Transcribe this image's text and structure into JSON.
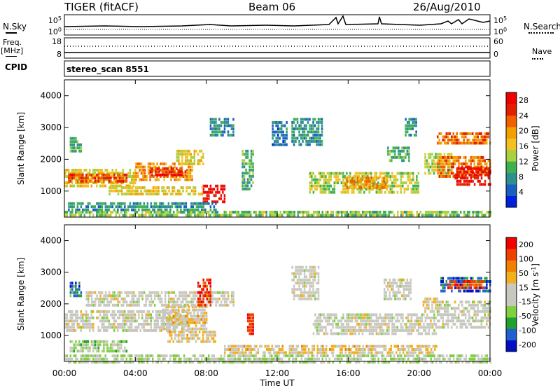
{
  "header": {
    "title": "TIGER (fitACF)",
    "beam": "Beam 06",
    "date": "26/Aug/2010"
  },
  "top_panels": {
    "nsky_label": "N.Sky",
    "nsky_ticks": [
      "10^5",
      "10^0"
    ],
    "nsearch_label": "N.Search",
    "nsearch_ticks": [
      "10^5",
      "10^0"
    ],
    "freq_label": "Freq.",
    "freq_unit": "[MHz]",
    "freq_ticks": [
      "18",
      "8"
    ],
    "nave_label": "Nave",
    "nave_ticks": [
      "60",
      "0"
    ],
    "cpid_label": "CPID",
    "cpid_value": "stereo_scan 8551"
  },
  "colors": {
    "power_scale": [
      "#0020e0",
      "#1860c0",
      "#2f8f8f",
      "#3fb050",
      "#a8d040",
      "#f2c020",
      "#f0a000",
      "#f06000",
      "#e02000",
      "#f00000"
    ],
    "velocity_scale": [
      "#0010c0",
      "#2060d0",
      "#20a030",
      "#80d040",
      "#c8c8c0",
      "#c8c8c0",
      "#f0b020",
      "#f08000",
      "#f04000",
      "#f00000"
    ]
  },
  "chart_data": [
    {
      "type": "heatmap",
      "title": "Power",
      "xlabel": "Time UT",
      "ylabel": "Slant Range [km]",
      "x_ticks": [
        "00:00",
        "04:00",
        "08:00",
        "12:00",
        "16:00",
        "20:00",
        "00:00"
      ],
      "x_range_hours": [
        0,
        24
      ],
      "y_ticks": [
        1000,
        2000,
        3000,
        4000
      ],
      "y_range": [
        180,
        4500
      ],
      "colorbar_label": "Power [dB]",
      "colorbar_ticks": [
        4,
        8,
        12,
        16,
        20,
        24,
        28
      ],
      "colorbar_range": [
        0,
        30
      ],
      "regions": [
        {
          "t": [
            0.0,
            4.0
          ],
          "r": [
            1200,
            1700
          ],
          "v": 16
        },
        {
          "t": [
            0.2,
            3.5
          ],
          "r": [
            1300,
            1550
          ],
          "v": 24
        },
        {
          "t": [
            4.0,
            7.2
          ],
          "r": [
            1400,
            1900
          ],
          "v": 20
        },
        {
          "t": [
            4.8,
            6.8
          ],
          "r": [
            1500,
            1750
          ],
          "v": 26
        },
        {
          "t": [
            6.3,
            7.8
          ],
          "r": [
            1850,
            2300
          ],
          "v": 16
        },
        {
          "t": [
            7.8,
            9.0
          ],
          "r": [
            700,
            1200
          ],
          "v": 28
        },
        {
          "t": [
            2.5,
            7.8
          ],
          "r": [
            900,
            1150
          ],
          "v": 16
        },
        {
          "t": [
            0.2,
            8.5
          ],
          "r": [
            450,
            650
          ],
          "v": 8
        },
        {
          "t": [
            0.0,
            24.0
          ],
          "r": [
            200,
            380
          ],
          "v": 12
        },
        {
          "t": [
            0.3,
            0.9
          ],
          "r": [
            2300,
            2700
          ],
          "v": 10
        },
        {
          "t": [
            8.2,
            9.5
          ],
          "r": [
            2800,
            3300
          ],
          "v": 8
        },
        {
          "t": [
            10.0,
            10.6
          ],
          "r": [
            1100,
            2300
          ],
          "v": 10
        },
        {
          "t": [
            11.7,
            12.5
          ],
          "r": [
            2500,
            3200
          ],
          "v": 6
        },
        {
          "t": [
            12.8,
            14.5
          ],
          "r": [
            2500,
            3300
          ],
          "v": 8
        },
        {
          "t": [
            13.8,
            20.0
          ],
          "r": [
            1000,
            1600
          ],
          "v": 14
        },
        {
          "t": [
            15.8,
            18.2
          ],
          "r": [
            1150,
            1450
          ],
          "v": 20
        },
        {
          "t": [
            18.2,
            19.4
          ],
          "r": [
            2000,
            2400
          ],
          "v": 10
        },
        {
          "t": [
            19.2,
            19.8
          ],
          "r": [
            2800,
            3300
          ],
          "v": 8
        },
        {
          "t": [
            20.3,
            21.8
          ],
          "r": [
            1600,
            2200
          ],
          "v": 14
        },
        {
          "t": [
            21.0,
            24.0
          ],
          "r": [
            1500,
            2100
          ],
          "v": 22
        },
        {
          "t": [
            22.0,
            24.0
          ],
          "r": [
            1250,
            1750
          ],
          "v": 28
        },
        {
          "t": [
            21.0,
            24.0
          ],
          "r": [
            2500,
            2850
          ],
          "v": 22
        }
      ]
    },
    {
      "type": "heatmap",
      "title": "Velocity",
      "xlabel": "Time UT",
      "ylabel": "Slant Range [km]",
      "x_ticks": [
        "00:00",
        "04:00",
        "08:00",
        "12:00",
        "16:00",
        "20:00",
        "00:00"
      ],
      "x_range_hours": [
        0,
        24
      ],
      "y_ticks": [
        1000,
        2000,
        3000,
        4000
      ],
      "y_range": [
        180,
        4500
      ],
      "colorbar_label": "Velocity [m s^-1]",
      "colorbar_ticks": [
        200,
        100,
        50,
        15,
        -15,
        -50,
        -100,
        -200
      ],
      "colorbar_range": [
        -250,
        250
      ],
      "regions": [
        {
          "t": [
            0.0,
            7.0
          ],
          "r": [
            1150,
            1800
          ],
          "v": 0
        },
        {
          "t": [
            5.5,
            8.0
          ],
          "r": [
            1250,
            1950
          ],
          "v": 20
        },
        {
          "t": [
            6.0,
            8.0
          ],
          "r": [
            1450,
            1650
          ],
          "v": 60
        },
        {
          "t": [
            5.8,
            8.5
          ],
          "r": [
            800,
            1150
          ],
          "v": 45
        },
        {
          "t": [
            0.3,
            3.5
          ],
          "r": [
            550,
            850
          ],
          "v": -60
        },
        {
          "t": [
            0.0,
            24.0
          ],
          "r": [
            200,
            400
          ],
          "v": -40
        },
        {
          "t": [
            0.3,
            0.9
          ],
          "r": [
            2300,
            2700
          ],
          "v": -150
        },
        {
          "t": [
            1.2,
            9.5
          ],
          "r": [
            2000,
            2400
          ],
          "v": 0
        },
        {
          "t": [
            7.5,
            8.2
          ],
          "r": [
            2000,
            2800
          ],
          "v": 200
        },
        {
          "t": [
            10.3,
            10.6
          ],
          "r": [
            1100,
            1700
          ],
          "v": 200
        },
        {
          "t": [
            12.8,
            14.3
          ],
          "r": [
            2200,
            3200
          ],
          "v": 0
        },
        {
          "t": [
            14.0,
            21.0
          ],
          "r": [
            1100,
            1700
          ],
          "v": 0
        },
        {
          "t": [
            18.0,
            19.5
          ],
          "r": [
            2200,
            2800
          ],
          "v": 0
        },
        {
          "t": [
            20.2,
            21.0
          ],
          "r": [
            1800,
            2200
          ],
          "v": 45
        },
        {
          "t": [
            21.0,
            24.0
          ],
          "r": [
            1300,
            2100
          ],
          "v": 0
        },
        {
          "t": [
            21.2,
            24.0
          ],
          "r": [
            2450,
            2850
          ],
          "v": -180
        },
        {
          "t": [
            21.6,
            23.6
          ],
          "r": [
            2550,
            2750
          ],
          "v": 180
        },
        {
          "t": [
            9.0,
            21.0
          ],
          "r": [
            450,
            700
          ],
          "v": 45
        }
      ]
    }
  ]
}
